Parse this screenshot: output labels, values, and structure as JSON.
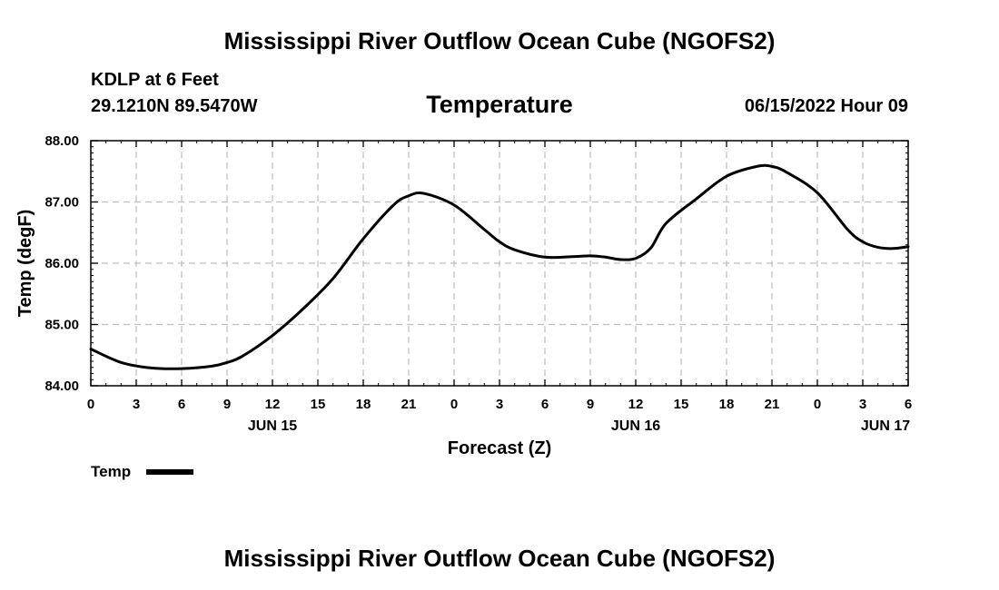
{
  "header": {
    "main_title": "Mississippi River Outflow Ocean Cube (NGOFS2)",
    "station": "KDLP at 6 Feet",
    "coordinates": "29.1210N  89.5470W",
    "chart_title": "Temperature",
    "datetime": "06/15/2022 Hour 09"
  },
  "footer": {
    "repeated_title": "Mississippi River Outflow Ocean Cube (NGOFS2)"
  },
  "chart_data": {
    "type": "line",
    "title": "Temperature",
    "xlabel": "Forecast (Z)",
    "ylabel": "Temp (degF)",
    "xlim": [
      0,
      54
    ],
    "ylim": [
      84.0,
      88.0
    ],
    "grid": true,
    "legend_position": "bottom-left",
    "x_ticks": [
      {
        "hour": 0,
        "label": "0"
      },
      {
        "hour": 3,
        "label": "3"
      },
      {
        "hour": 6,
        "label": "6"
      },
      {
        "hour": 9,
        "label": "9"
      },
      {
        "hour": 12,
        "label": "12"
      },
      {
        "hour": 15,
        "label": "15"
      },
      {
        "hour": 18,
        "label": "18"
      },
      {
        "hour": 21,
        "label": "21"
      },
      {
        "hour": 24,
        "label": "0"
      },
      {
        "hour": 27,
        "label": "3"
      },
      {
        "hour": 30,
        "label": "6"
      },
      {
        "hour": 33,
        "label": "9"
      },
      {
        "hour": 36,
        "label": "12"
      },
      {
        "hour": 39,
        "label": "15"
      },
      {
        "hour": 42,
        "label": "18"
      },
      {
        "hour": 45,
        "label": "21"
      },
      {
        "hour": 48,
        "label": "0"
      },
      {
        "hour": 51,
        "label": "3"
      },
      {
        "hour": 54,
        "label": "6"
      }
    ],
    "date_labels": [
      {
        "hour": 12,
        "label": "JUN 15"
      },
      {
        "hour": 36,
        "label": "JUN 16"
      },
      {
        "hour": 52.5,
        "label": "JUN 17"
      }
    ],
    "y_ticks": [
      {
        "value": 84.0,
        "label": "84.00"
      },
      {
        "value": 85.0,
        "label": "85.00"
      },
      {
        "value": 86.0,
        "label": "86.00"
      },
      {
        "value": 87.0,
        "label": "87.00"
      },
      {
        "value": 88.0,
        "label": "88.00"
      }
    ],
    "series": [
      {
        "name": "Temp",
        "color": "#000000",
        "x": [
          0,
          2,
          4,
          6,
          8,
          9,
          10,
          12,
          14,
          16,
          18,
          20,
          21,
          22,
          24,
          26,
          27,
          28,
          30,
          32,
          33,
          34,
          35,
          36,
          37,
          38,
          40,
          42,
          44,
          45,
          46,
          48,
          50,
          51,
          52,
          53,
          54
        ],
        "values": [
          84.6,
          84.38,
          84.29,
          84.28,
          84.32,
          84.38,
          84.48,
          84.82,
          85.25,
          85.75,
          86.4,
          86.95,
          87.1,
          87.14,
          86.95,
          86.55,
          86.35,
          86.22,
          86.1,
          86.11,
          86.12,
          86.1,
          86.06,
          86.08,
          86.25,
          86.65,
          87.05,
          87.42,
          87.58,
          87.58,
          87.48,
          87.15,
          86.55,
          86.35,
          86.26,
          86.24,
          86.27
        ]
      }
    ]
  }
}
